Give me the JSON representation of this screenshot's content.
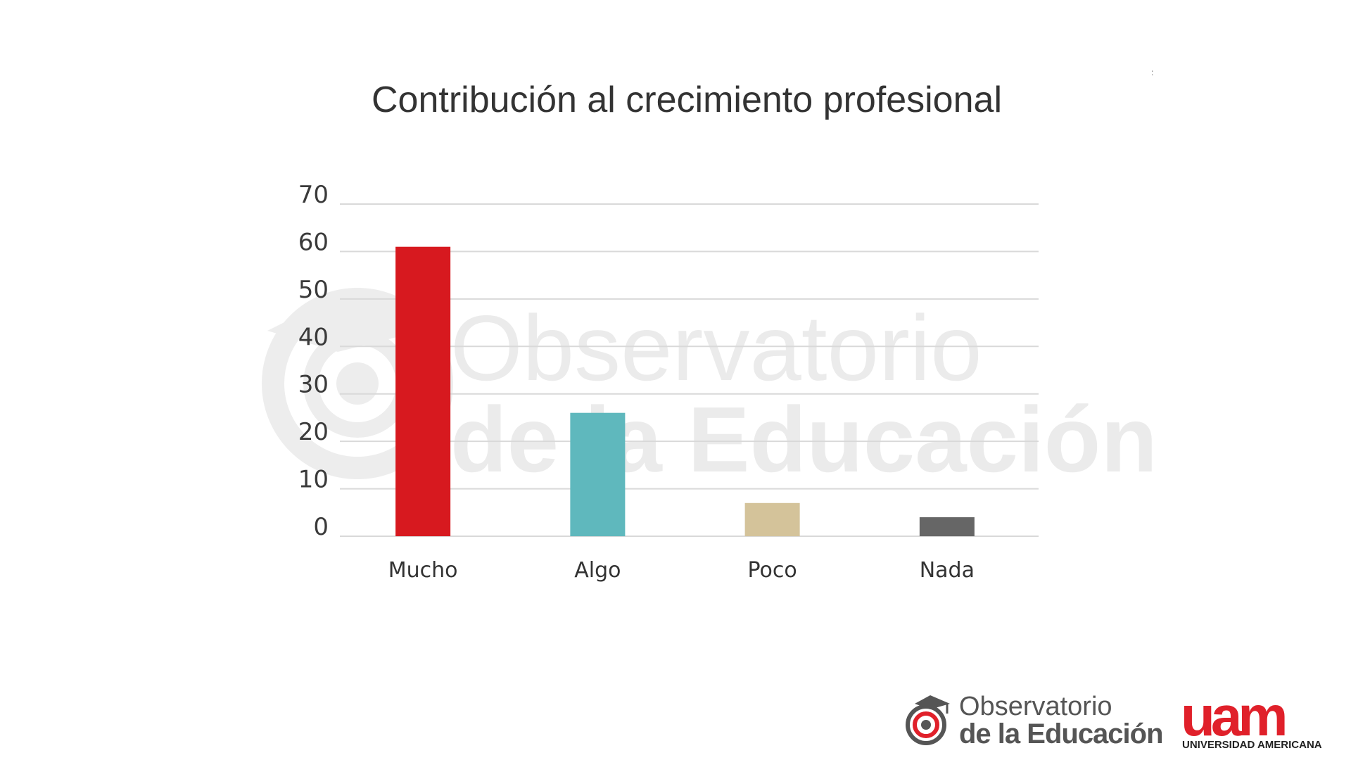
{
  "chart_data": {
    "type": "bar",
    "title": "Contribución al crecimiento profesional",
    "categories": [
      "Mucho",
      "Algo",
      "Poco",
      "Nada"
    ],
    "values": [
      61,
      26,
      7,
      4
    ],
    "colors": [
      "#d7191f",
      "#5fb8bd",
      "#d4c39a",
      "#666666"
    ],
    "ylim": [
      0,
      70
    ],
    "yticks": [
      0,
      10,
      20,
      30,
      40,
      50,
      60,
      70
    ],
    "xlabel": "",
    "ylabel": "",
    "grid": true
  },
  "watermark": {
    "line1": "Observatorio",
    "line2": "de la Educación"
  },
  "footer": {
    "observatorio_line1": "Observatorio",
    "observatorio_line2": "de la Educación",
    "uam_mark": "uam",
    "uam_name": "UNIVERSIDAD AMERICANA"
  },
  "corner_mark": ":"
}
